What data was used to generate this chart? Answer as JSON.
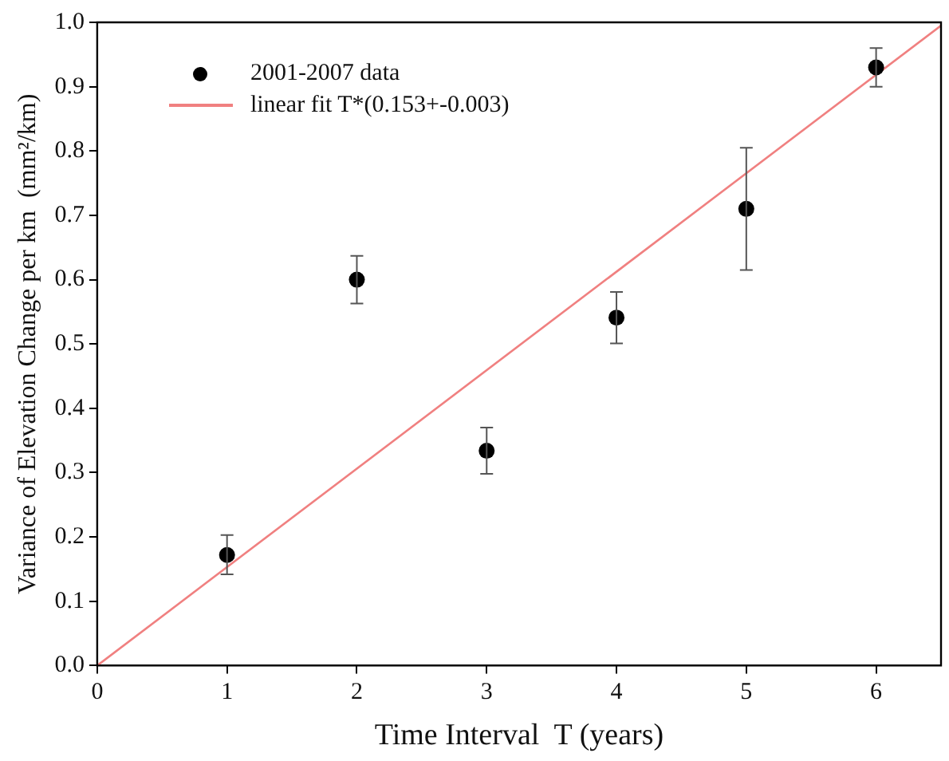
{
  "chart_data": {
    "type": "scatter",
    "xlabel": "Time Interval  T (years)",
    "ylabel": "Variance of Elevation Change per km  (mm²/km)",
    "xlim": [
      0,
      6.5
    ],
    "xticks": [
      0,
      1,
      2,
      3,
      4,
      5,
      6
    ],
    "ylim": [
      0,
      1
    ],
    "yticks": [
      {
        "value": 0,
        "label": "0.0"
      },
      0.1,
      0.2,
      0.3,
      0.4,
      0.5,
      0.6,
      0.7,
      0.8,
      0.9,
      {
        "value": 1,
        "label": "1.0"
      }
    ],
    "grid": false,
    "legend": "top left",
    "series": [
      {
        "name": "2001-2007 data",
        "marker": "circle",
        "color": "#000000",
        "x": [
          1,
          2,
          3,
          4,
          5,
          6
        ],
        "values": [
          0.172,
          0.6,
          0.334,
          0.541,
          0.71,
          0.93
        ],
        "errors": [
          [
            0.142,
            0.203
          ],
          [
            0.563,
            0.637
          ],
          [
            0.298,
            0.37
          ],
          [
            0.501,
            0.581
          ],
          [
            0.615,
            0.805
          ],
          [
            0.9,
            0.96
          ]
        ]
      },
      {
        "name": "linear fit T*(0.153+-0.003)",
        "type": "line",
        "marker": "none",
        "color": "#f08080",
        "x": [
          0,
          6.5
        ],
        "values": [
          0,
          0.995
        ]
      }
    ]
  }
}
